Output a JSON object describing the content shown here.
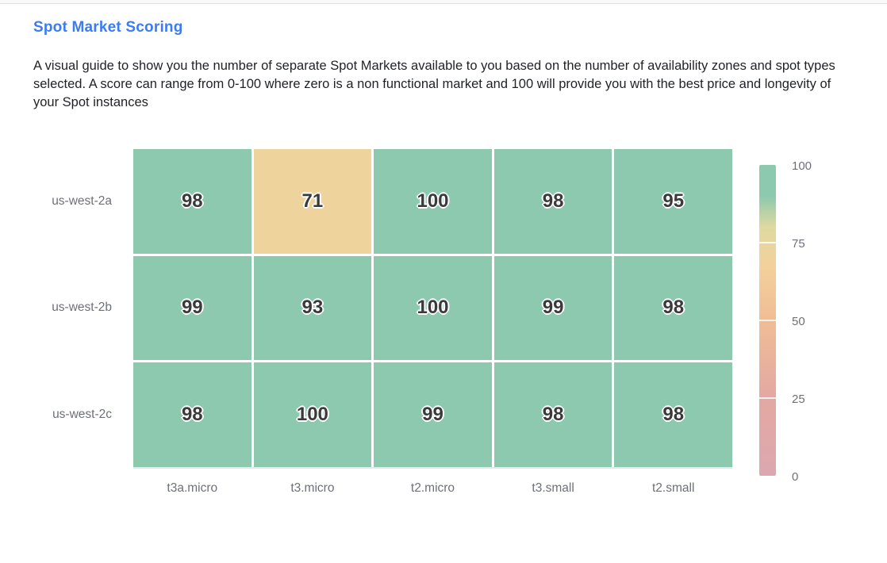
{
  "header": {
    "title": "Spot Market Scoring",
    "description": "A visual guide to show you the number of separate Spot Markets available to you based on the number of availability zones and spot types selected. A score can range from 0-100 where zero is a non functional market and 100 will provide you with the best price and longevity of your Spot instances"
  },
  "colors": {
    "title_blue": "#3b7cf5",
    "body_text": "#1f2125",
    "axis_label_gray": "#6e7079",
    "cell_text": "#3a3a3a",
    "cell_green": "#8dc9ae",
    "cell_tan": "#f1d29e",
    "axis_line": "#e3e8ee"
  },
  "chart_data": {
    "type": "heatmap",
    "title": "Spot Market Scoring",
    "x_categories": [
      "t3a.micro",
      "t3.micro",
      "t2.micro",
      "t3.small",
      "t2.small"
    ],
    "y_categories": [
      "us-west-2a",
      "us-west-2b",
      "us-west-2c"
    ],
    "rows": [
      {
        "zone": "us-west-2a",
        "values": [
          98,
          71,
          100,
          98,
          95
        ]
      },
      {
        "zone": "us-west-2b",
        "values": [
          99,
          93,
          100,
          99,
          98
        ]
      },
      {
        "zone": "us-west-2c",
        "values": [
          98,
          100,
          99,
          98,
          98
        ]
      }
    ],
    "value_range": [
      0,
      100
    ],
    "grid": false,
    "legend": {
      "position": "right",
      "orientation": "vertical",
      "tick_labels": [
        "100",
        "75",
        "50",
        "25",
        "0"
      ],
      "tick_values": [
        100,
        75,
        50,
        25,
        0
      ],
      "scale_stops": [
        {
          "value": 0,
          "color": "#dca8af"
        },
        {
          "value": 25,
          "color": "#e3a8a2"
        },
        {
          "value": 50,
          "color": "#f0bd96"
        },
        {
          "value": 68,
          "color": "#f3d19c"
        },
        {
          "value": 80,
          "color": "#dfd9a1"
        },
        {
          "value": 90,
          "color": "#8dc9ae"
        },
        {
          "value": 100,
          "color": "#8dc9ae"
        }
      ]
    }
  }
}
